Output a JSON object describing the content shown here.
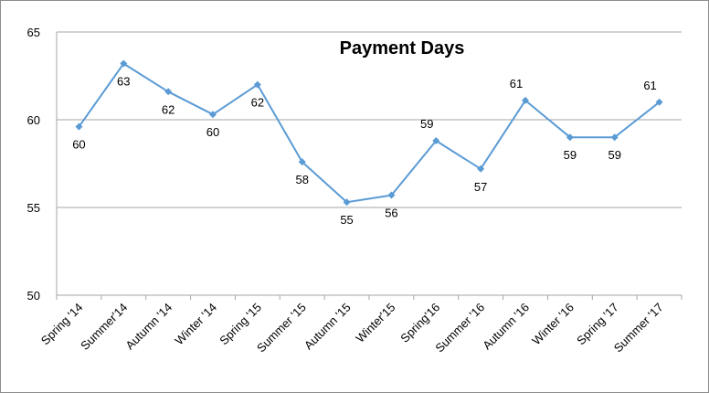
{
  "chart_data": {
    "type": "line",
    "title": "Payment Days",
    "xlabel": "",
    "ylabel": "",
    "categories": [
      "Spring '14",
      "Summer'14",
      "Autumn '14",
      "Winter '14",
      "Spring '15",
      "Summer '15",
      "Autumn '15",
      "Winter'15",
      "Spring'16",
      "Summer '16",
      "Autumn '16",
      "Winter '16",
      "Spring '17",
      "Summer '17"
    ],
    "series": [
      {
        "values": [
          59.6,
          63.2,
          61.6,
          60.3,
          62.0,
          57.6,
          55.3,
          55.7,
          58.8,
          57.2,
          61.1,
          59.0,
          59.0,
          61.0
        ],
        "labels": [
          "60",
          "63",
          "62",
          "60",
          "62",
          "58",
          "55",
          "56",
          "59",
          "57",
          "61",
          "59",
          "59",
          "61"
        ],
        "color": "#5b9bd5"
      }
    ],
    "ylim": [
      50,
      65
    ],
    "yticks": [
      "50",
      "55",
      "60",
      "65"
    ],
    "grid": true,
    "legend": "none"
  }
}
